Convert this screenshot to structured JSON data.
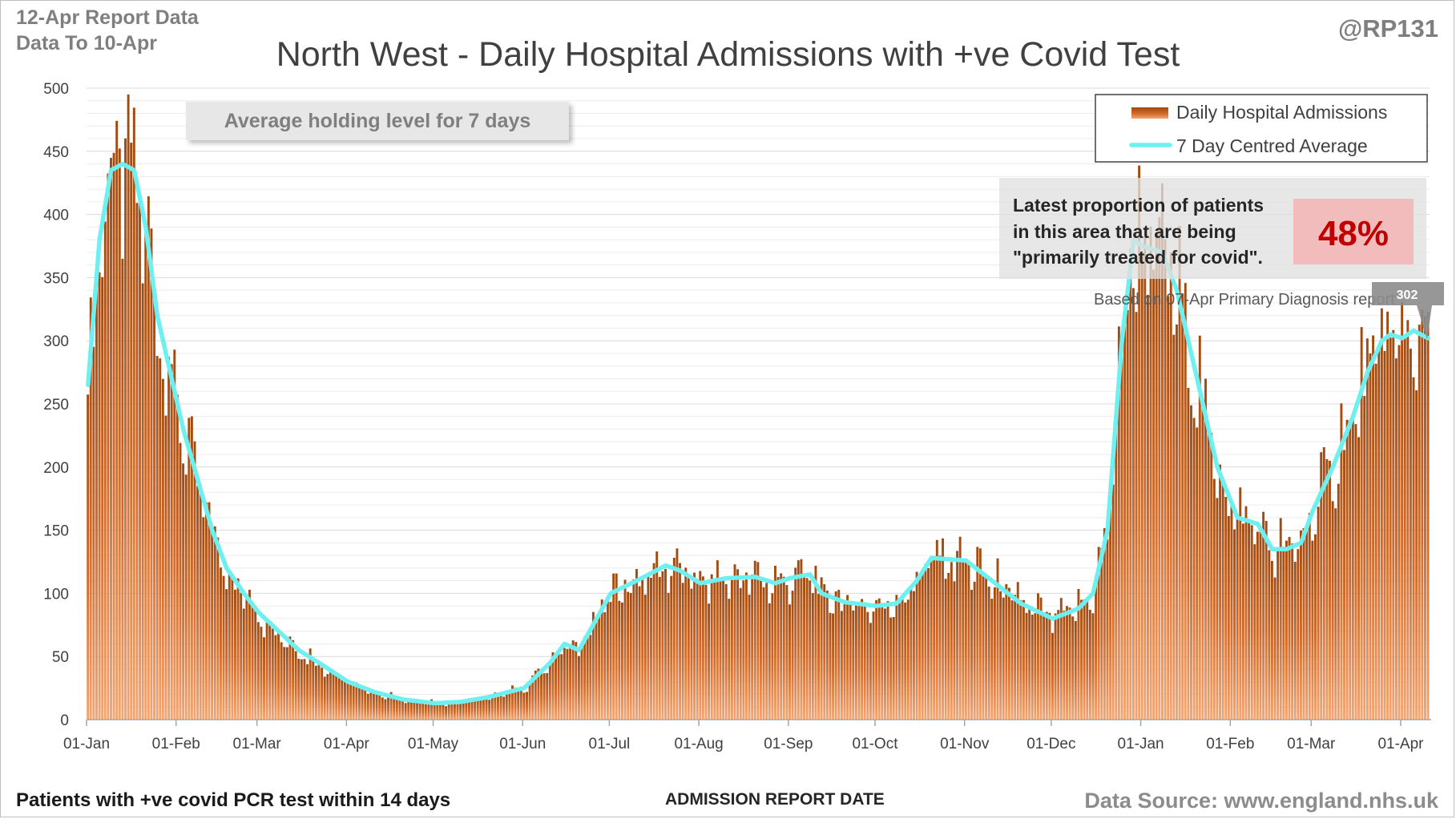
{
  "header": {
    "report_line1": "12-Apr Report Data",
    "report_line2": "Data To 10-Apr",
    "handle": "@RP131",
    "title": "North West - Daily Hospital Admissions with +ve Covid Test"
  },
  "footer": {
    "left_note": "Patients with +ve covid PCR test within 14 days",
    "x_axis_label": "ADMISSION REPORT DATE",
    "source": "Data Source: www.england.nhs.uk"
  },
  "annotations": {
    "holding_box": "Average holding level for 7 days",
    "proportion_line1": "Latest proportion of patients",
    "proportion_line2": "in this area that are being",
    "proportion_line3": "\"primarily treated for covid\".",
    "proportion_value": "48%",
    "basis_note": "Based on 07-Apr Primary Diagnosis report",
    "last_value_label": "302"
  },
  "colors": {
    "bars_dark": "#a0490f",
    "bars_light": "#f4a572",
    "average_line": "#6ff0f0",
    "proportion_box": "#f4b7b7",
    "proportion_text": "#c00000",
    "annotation_box": "#e7e7e7"
  },
  "chart_data": {
    "type": "bar",
    "title": "North West - Daily Hospital Admissions with +ve Covid Test",
    "xlabel": "ADMISSION REPORT DATE",
    "ylabel": "",
    "ylim": [
      0,
      500
    ],
    "y_ticks": [
      0,
      50,
      100,
      150,
      200,
      250,
      300,
      350,
      400,
      450,
      500
    ],
    "x_tick_labels": [
      "01-Jan",
      "01-Feb",
      "01-Mar",
      "01-Apr",
      "01-May",
      "01-Jun",
      "01-Jul",
      "01-Aug",
      "01-Sep",
      "01-Oct",
      "01-Nov",
      "01-Dec",
      "01-Jan",
      "01-Feb",
      "01-Mar",
      "01-Apr"
    ],
    "x_tick_dates": [
      "2021-01-01",
      "2021-02-01",
      "2021-03-01",
      "2021-04-01",
      "2021-05-01",
      "2021-06-01",
      "2021-07-01",
      "2021-08-01",
      "2021-09-01",
      "2021-10-01",
      "2021-11-01",
      "2021-12-01",
      "2022-01-01",
      "2022-02-01",
      "2022-03-01",
      "2022-04-01"
    ],
    "x_range": [
      "2021-01-01",
      "2022-04-10"
    ],
    "grid": true,
    "legend_position": "top-right",
    "series": [
      {
        "name": "Daily Hospital Admissions",
        "kind": "bar",
        "note": "daily values, approximated from the trend below with day-to-day variation",
        "trend_x": [
          "2021-01-01",
          "2021-01-05",
          "2021-01-09",
          "2021-01-13",
          "2021-01-17",
          "2021-01-21",
          "2021-01-25",
          "2021-01-29",
          "2021-02-03",
          "2021-02-08",
          "2021-02-13",
          "2021-02-18",
          "2021-02-24",
          "2021-03-01",
          "2021-03-08",
          "2021-03-15",
          "2021-03-22",
          "2021-04-01",
          "2021-04-10",
          "2021-04-20",
          "2021-05-01",
          "2021-05-10",
          "2021-05-20",
          "2021-06-01",
          "2021-06-10",
          "2021-06-15",
          "2021-06-20",
          "2021-07-01",
          "2021-07-10",
          "2021-07-20",
          "2021-07-25",
          "2021-08-01",
          "2021-08-10",
          "2021-08-20",
          "2021-08-27",
          "2021-09-01",
          "2021-09-08",
          "2021-09-12",
          "2021-09-20",
          "2021-10-01",
          "2021-10-08",
          "2021-10-15",
          "2021-10-20",
          "2021-11-01",
          "2021-11-10",
          "2021-11-20",
          "2021-12-01",
          "2021-12-10",
          "2021-12-15",
          "2021-12-20",
          "2021-12-25",
          "2021-12-29",
          "2022-01-01",
          "2022-01-08",
          "2022-01-13",
          "2022-01-20",
          "2022-01-27",
          "2022-02-03",
          "2022-02-10",
          "2022-02-15",
          "2022-02-20",
          "2022-02-25",
          "2022-03-01",
          "2022-03-08",
          "2022-03-15",
          "2022-03-20",
          "2022-03-25",
          "2022-03-28",
          "2022-04-01",
          "2022-04-05",
          "2022-04-10"
        ],
        "trend_y": [
          260,
          380,
          435,
          440,
          435,
          390,
          320,
          280,
          230,
          190,
          150,
          120,
          100,
          85,
          70,
          55,
          45,
          30,
          22,
          16,
          13,
          14,
          18,
          25,
          45,
          60,
          55,
          100,
          110,
          122,
          118,
          108,
          112,
          113,
          108,
          112,
          115,
          100,
          93,
          90,
          92,
          110,
          128,
          126,
          110,
          92,
          80,
          88,
          100,
          150,
          300,
          380,
          375,
          370,
          340,
          270,
          200,
          160,
          155,
          135,
          135,
          140,
          165,
          200,
          240,
          275,
          300,
          305,
          302,
          308,
          290
        ]
      },
      {
        "name": "7 Day Centred Average",
        "kind": "line",
        "x": [
          "2021-01-01",
          "2021-01-05",
          "2021-01-09",
          "2021-01-13",
          "2021-01-17",
          "2021-01-21",
          "2021-01-25",
          "2021-01-29",
          "2021-02-03",
          "2021-02-08",
          "2021-02-13",
          "2021-02-18",
          "2021-02-24",
          "2021-03-01",
          "2021-03-08",
          "2021-03-15",
          "2021-03-22",
          "2021-04-01",
          "2021-04-10",
          "2021-04-20",
          "2021-05-01",
          "2021-05-10",
          "2021-05-20",
          "2021-06-01",
          "2021-06-10",
          "2021-06-15",
          "2021-06-20",
          "2021-07-01",
          "2021-07-10",
          "2021-07-20",
          "2021-07-25",
          "2021-08-01",
          "2021-08-10",
          "2021-08-20",
          "2021-08-27",
          "2021-09-01",
          "2021-09-08",
          "2021-09-12",
          "2021-09-20",
          "2021-10-01",
          "2021-10-08",
          "2021-10-15",
          "2021-10-20",
          "2021-11-01",
          "2021-11-10",
          "2021-11-20",
          "2021-12-01",
          "2021-12-10",
          "2021-12-15",
          "2021-12-20",
          "2021-12-25",
          "2021-12-29",
          "2022-01-01",
          "2022-01-08",
          "2022-01-13",
          "2022-01-20",
          "2022-01-27",
          "2022-02-03",
          "2022-02-10",
          "2022-02-15",
          "2022-02-20",
          "2022-02-25",
          "2022-03-01",
          "2022-03-08",
          "2022-03-15",
          "2022-03-20",
          "2022-03-25",
          "2022-03-28",
          "2022-04-01",
          "2022-04-05",
          "2022-04-10"
        ],
        "y": [
          265,
          380,
          435,
          440,
          435,
          390,
          320,
          280,
          230,
          190,
          150,
          120,
          100,
          85,
          70,
          55,
          45,
          30,
          22,
          16,
          13,
          14,
          18,
          25,
          45,
          60,
          55,
          100,
          110,
          122,
          118,
          108,
          112,
          113,
          108,
          112,
          115,
          100,
          93,
          90,
          92,
          110,
          128,
          126,
          110,
          92,
          80,
          88,
          100,
          150,
          300,
          380,
          375,
          370,
          340,
          270,
          200,
          160,
          155,
          135,
          135,
          140,
          165,
          200,
          240,
          275,
          300,
          305,
          302,
          308,
          302
        ]
      }
    ]
  }
}
